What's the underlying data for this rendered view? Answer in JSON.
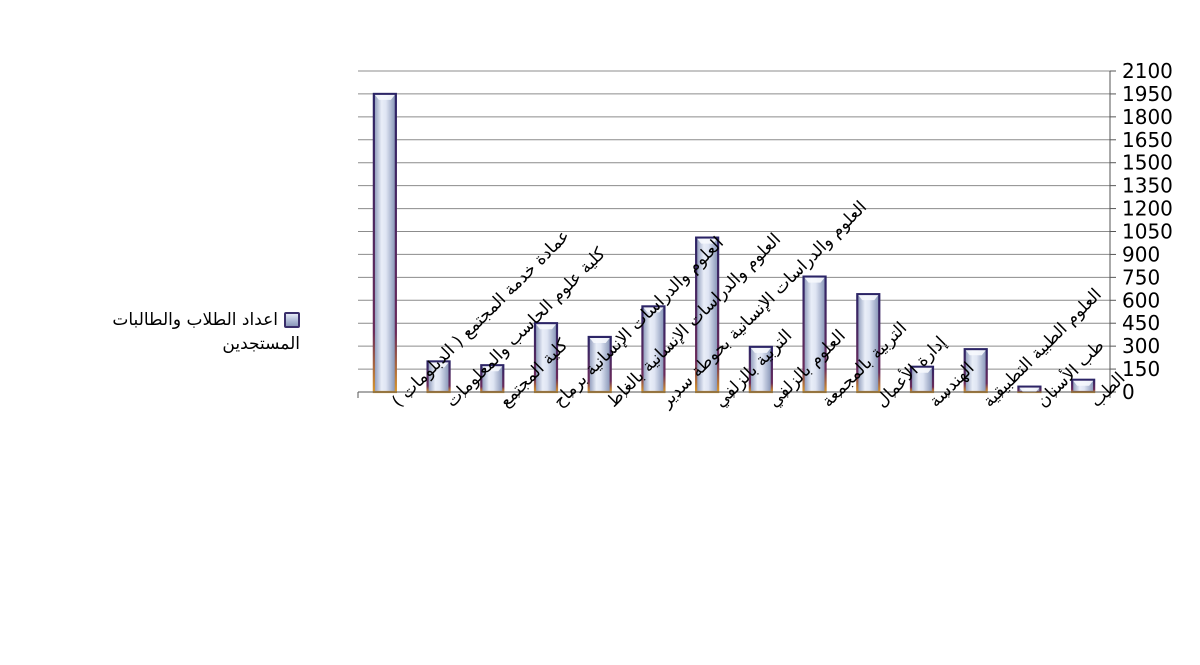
{
  "chart_data": {
    "type": "bar",
    "categories": [
      "عمادة خدمة المجتمع ( الدبلومات )",
      "كلية علوم الحاسب والمعلومات",
      "كلية المجتمع",
      "العلوم والدراسات الإنسانية برماح",
      "العلوم والدراسات الإنسانية بالغاط",
      "العلوم والدراسات الإنسانية بحوطة سدير",
      "التربية بالزلفي",
      "العلوم بالزلفي",
      "التربية بالمجمعة",
      "إدارة الأعمال",
      "الهندسة",
      "العلوم الطبية التطبيقية",
      "طب الأسنان",
      "الطب"
    ],
    "series": [
      {
        "name": "اعداد الطلاب والطالبات المستجدين",
        "values": [
          1950,
          200,
          175,
          450,
          360,
          560,
          1010,
          295,
          755,
          640,
          165,
          280,
          35,
          80
        ]
      }
    ],
    "yticks": [
      0,
      150,
      300,
      450,
      600,
      750,
      900,
      1050,
      1200,
      1350,
      1500,
      1650,
      1800,
      1950,
      2100
    ],
    "ylim": [
      0,
      2100
    ],
    "axis_side": "right",
    "legend_position": "left",
    "grid": true,
    "colors": {
      "bar_fill_top": "#e8edf7",
      "bar_fill_bottom": "#7f8db0",
      "bar_edge": "#3a2f6b",
      "grid": "#8c8c8c"
    }
  },
  "legend": {
    "line1": "اعداد الطلاب والطالبات",
    "line2": "المستجدين"
  }
}
